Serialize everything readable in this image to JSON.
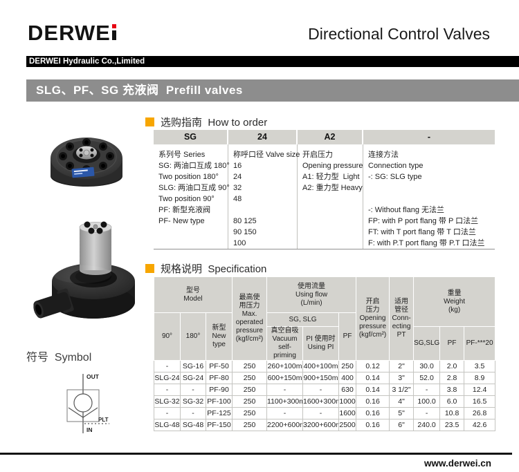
{
  "header": {
    "logo_text": "DERWE",
    "doc_title": "Directional Control Valves",
    "company_bar": "DERWEI Hydraulic Co.,Limited"
  },
  "title_bar": "SLG、PF、SG 充液阀  Prefill valves",
  "sections": {
    "how_to_order": "选购指南  How to order",
    "specification": "规格说明  Specification",
    "symbol": "符号  Symbol"
  },
  "order_table": {
    "headers": [
      "SG",
      "24",
      "A2",
      "-"
    ],
    "columns": [
      {
        "lines": [
          "系列号 Series",
          "SG: 两油口互成 180°",
          "Two position 180°",
          "SLG: 两油口互成 90°",
          "Two position 90°",
          "PF: 新型充液阀",
          "PF- New type"
        ]
      },
      {
        "lines": [
          "称呼口径 Valve size",
          "16",
          "24",
          "32",
          "48",
          "",
          "80 125",
          "90 150",
          "100"
        ]
      },
      {
        "lines": [
          "开启压力",
          "Opening pressure",
          "A1: 轻力型  Light",
          "A2: 重力型 Heavy"
        ]
      },
      {
        "lines": [
          "连接方法",
          "Connection type",
          "-: SG: SLG type",
          "",
          "",
          "-: Without flang 无法兰",
          "FP: with P port flang 带 P 口法兰",
          "FT: with T port flang 带 T 口法兰",
          "F: with P.T port flang 带 P.T 口法兰"
        ]
      }
    ]
  },
  "spec_table": {
    "header": {
      "model": "型号\nModel",
      "deg90": "90°",
      "deg180": "180°",
      "new_type": "新型\nNew\ntype",
      "max_pressure": "最高使\n用压力\nMax.\noperated\npressure\n(kgf/cm²)",
      "using_flow": "使用流量\nUsing flow\n(L/min)",
      "sg_slg_group": "SG, SLG",
      "vacuum": "真空自吸\nVacuum\nself-priming",
      "using_pi": "PI 使用时\nUsing PI",
      "pf_flow": "PF",
      "opening_pressure": "开启\n压力\nOpening\npressure\n(kgf/cm²)",
      "connecting": "适用\n管径\nConn-\necting\nPT",
      "weight": "重量\nWeight\n(kg)",
      "weight_sg_slg": "SG,SLG",
      "weight_pf": "PF",
      "weight_pf20": "PF-***20"
    },
    "rows": [
      [
        "-",
        "SG-16",
        "PF-50",
        "250",
        "260+100m",
        "400+100m",
        "250",
        "0.12",
        "2\"",
        "30.0",
        "2.0",
        "3.5"
      ],
      [
        "SLG-24",
        "SG-24",
        "PF-80",
        "250",
        "600+150m",
        "900+150m",
        "400",
        "0.14",
        "3\"",
        "52.0",
        "2.8",
        "8.9"
      ],
      [
        "-",
        "-",
        "PF-90",
        "250",
        "-",
        "-",
        "630",
        "0.14",
        "3 1/2\"",
        "-",
        "3.8",
        "12.4"
      ],
      [
        "SLG-32",
        "SG-32",
        "PF-100",
        "250",
        "1100+300m",
        "1600+300m",
        "1000",
        "0.16",
        "4\"",
        "100.0",
        "6.0",
        "16.5"
      ],
      [
        "-",
        "-",
        "PF-125",
        "250",
        "-",
        "-",
        "1600",
        "0.16",
        "5\"",
        "-",
        "10.8",
        "26.8"
      ],
      [
        "SLG-48",
        "SG-48",
        "PF-150",
        "250",
        "2200+600m",
        "3200+600m",
        "2500",
        "0.16",
        "6\"",
        "240.0",
        "23.5",
        "42.6"
      ]
    ]
  },
  "symbol": {
    "out": "OUT",
    "in": "IN",
    "pilot": "PLT"
  },
  "footer": {
    "url": "www.derwei.cn"
  },
  "colors": {
    "logo_red": "#e60012",
    "accent_orange": "#f7a600",
    "title_bar_gray": "#8d8d8d",
    "table_header_bg": "#d4d3ce"
  }
}
